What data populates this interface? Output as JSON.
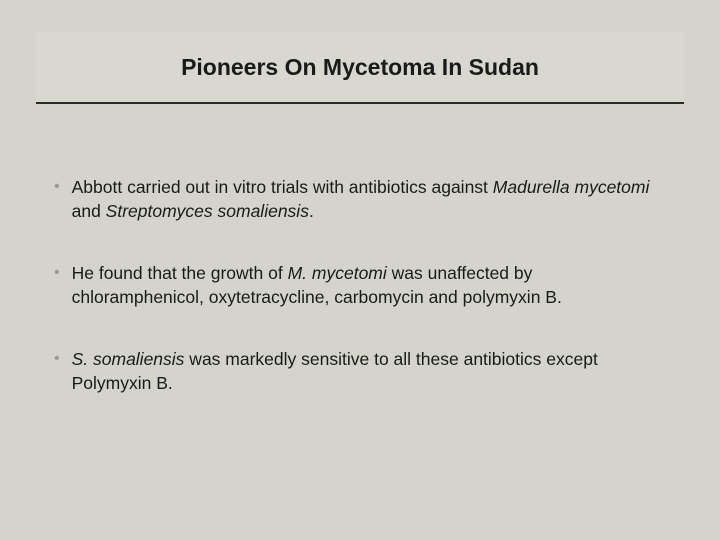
{
  "slide": {
    "background_color": "#d4d4cc",
    "title_box_background": "#d8d8d1",
    "title_underline_color": "#2a2a2a",
    "bullet_color": "#9a9a92",
    "text_color": "#1a1a1a",
    "title": "Pioneers On Mycetoma In Sudan",
    "title_fontsize": 23,
    "body_fontsize": 17.5,
    "bullets": [
      {
        "runs": [
          {
            "t": "Abbott carried out in vitro trials with antibiotics against ",
            "i": false
          },
          {
            "t": "Madurella mycetomi",
            "i": true
          },
          {
            "t": " and ",
            "i": false
          },
          {
            "t": "Streptomyces somaliensis",
            "i": true
          },
          {
            "t": ".",
            "i": false
          }
        ]
      },
      {
        "runs": [
          {
            "t": "He found that the growth of ",
            "i": false
          },
          {
            "t": "M. mycetomi",
            "i": true
          },
          {
            "t": " was unaffected by chloramphenicol, oxytetracycline, carbomycin and polymyxin B.",
            "i": false
          }
        ]
      },
      {
        "runs": [
          {
            "t": "S. somaliensis",
            "i": true
          },
          {
            "t": " was markedly sensitive to all these antibiotics except Polymyxin B.",
            "i": false
          }
        ]
      }
    ]
  }
}
